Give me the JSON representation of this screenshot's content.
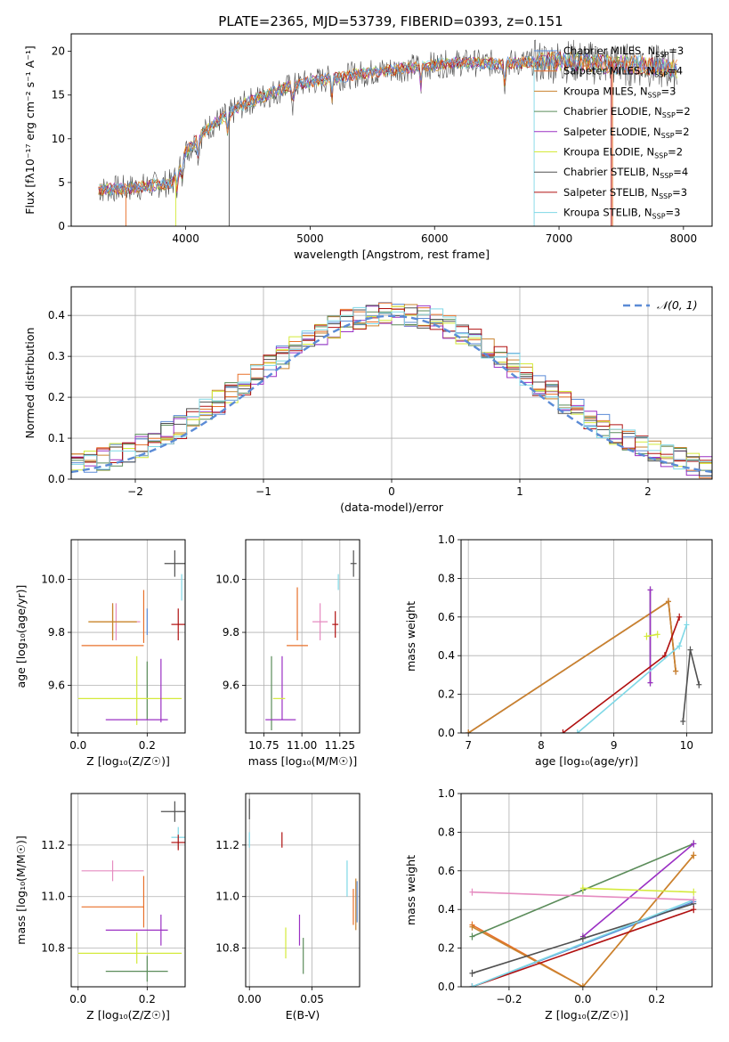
{
  "figure": {
    "title": "PLATE=2365, MJD=53739, FIBERID=0393, z=0.151"
  },
  "series": [
    {
      "name": "Chabrier MILES",
      "nssp": "3",
      "color": "#5b8bd6"
    },
    {
      "name": "Salpeter MILES",
      "nssp": "4",
      "color": "#e8702a"
    },
    {
      "name": "Kroupa MILES",
      "nssp": "3",
      "color": "#c9832e"
    },
    {
      "name": "Chabrier ELODIE",
      "nssp": "2",
      "color": "#5b8c5a"
    },
    {
      "name": "Salpeter ELODIE",
      "nssp": "2",
      "color": "#9b30c4"
    },
    {
      "name": "Kroupa ELODIE",
      "nssp": "2",
      "color": "#d4ea3a"
    },
    {
      "name": "Chabrier STELIB",
      "nssp": "4",
      "color": "#505050"
    },
    {
      "name": "Salpeter STELIB",
      "nssp": "3",
      "color": "#b01010"
    },
    {
      "name": "Kroupa STELIB",
      "nssp": "3",
      "color": "#7fd8e6"
    }
  ],
  "legend_nssp_prefix": "N",
  "legend_nssp_sub": "SSP",
  "chart_data": [
    {
      "type": "line",
      "id": "spectrum",
      "xlabel": "wavelength [Angstrom, rest frame]",
      "ylabel": "Flux [fλ10⁻¹⁷ erg cm⁻² s⁻¹ A⁻¹]",
      "xlim": [
        3080,
        8230
      ],
      "ylim": [
        0,
        22
      ],
      "xticks": [
        4000,
        5000,
        6000,
        7000,
        8000
      ],
      "yticks": [
        0,
        5,
        10,
        15,
        20
      ],
      "continuum": {
        "x": [
          3300,
          3500,
          3700,
          3900,
          4000,
          4200,
          4500,
          4800,
          5000,
          5300,
          5600,
          5900,
          6200,
          6500,
          6800,
          7100,
          7400,
          7700,
          7900
        ],
        "y": [
          4.2,
          4.3,
          4.6,
          5.0,
          8.5,
          11.5,
          14.2,
          15.8,
          16.5,
          17.2,
          17.8,
          18.3,
          18.7,
          18.6,
          18.8,
          18.9,
          18.5,
          18.4,
          18.0
        ]
      },
      "absorption_lines": [
        3934,
        3969,
        4102,
        4340,
        4861,
        5175,
        5890,
        6563
      ]
    },
    {
      "type": "line",
      "id": "residuals",
      "xlabel": "(data-model)/error",
      "ylabel": "Normed distribution",
      "xlim": [
        -2.5,
        2.5
      ],
      "ylim": [
        0,
        0.47
      ],
      "xticks": [
        -2,
        -1,
        0,
        1,
        2
      ],
      "yticks": [
        0.0,
        0.1,
        0.2,
        0.3,
        0.4
      ],
      "reference_label": "𝒩(0, 1)",
      "grid": true,
      "legend": "top-right"
    },
    {
      "type": "scatter",
      "id": "age-vs-Z",
      "xlabel": "Z [log₁₀(Z/Z☉)]",
      "ylabel": "age  [log₁₀(age/yr)]",
      "xlim": [
        -0.02,
        0.31
      ],
      "ylim": [
        9.42,
        10.15
      ],
      "xticks": [
        0.0,
        0.2
      ],
      "yticks": [
        9.6,
        9.8,
        10.0
      ],
      "grid": true,
      "points": [
        {
          "x": 0.28,
          "xerr": 0.03,
          "y": 10.06,
          "yerr": 0.05,
          "series": 6
        },
        {
          "x": 0.3,
          "xerr": 0.0,
          "y": 9.97,
          "yerr": 0.05,
          "series": 8
        },
        {
          "x": 0.29,
          "xerr": 0.02,
          "y": 9.83,
          "yerr": 0.06,
          "series": 7
        },
        {
          "x": 0.11,
          "xerr": 0.07,
          "y": 9.84,
          "yerr": 0.07,
          "series": 0
        },
        {
          "x": 0.1,
          "xerr": 0.07,
          "y": 9.84,
          "yerr": 0.07,
          "series": 8
        },
        {
          "x": 0.1,
          "xerr": 0.07,
          "y": 9.84,
          "yerr": 0.06,
          "series": 5
        },
        {
          "x": 0.1,
          "xerr": 0.07,
          "y": 9.84,
          "yerr": 0.07,
          "series": 2
        },
        {
          "x": 0.2,
          "xerr": 0.0,
          "y": 9.84,
          "yerr": 0.05,
          "series": 0
        },
        {
          "x": 0.19,
          "xerr": 0.0,
          "y": 9.86,
          "yerr": 0.1,
          "series": 1
        },
        {
          "x": 0.1,
          "xerr": 0.09,
          "y": 9.75,
          "yerr": 0.0,
          "series": 1
        },
        {
          "x": 0.2,
          "xerr": 0.0,
          "y": 9.58,
          "yerr": 0.11,
          "series": 3
        },
        {
          "x": 0.17,
          "xerr": 0.0,
          "y": 9.58,
          "yerr": 0.13,
          "series": 5
        },
        {
          "x": 0.15,
          "xerr": 0.15,
          "y": 9.55,
          "yerr": 0.0,
          "series": 5
        },
        {
          "x": 0.24,
          "xerr": 0.0,
          "y": 9.58,
          "yerr": 0.12,
          "series": 4
        },
        {
          "x": 0.17,
          "xerr": 0.09,
          "y": 9.47,
          "yerr": 0.0,
          "series": 4
        }
      ]
    },
    {
      "type": "scatter",
      "id": "age-vs-mass",
      "xlabel": "mass [log₁₀(M/M☉)]",
      "ylabel": "",
      "xlim": [
        10.63,
        11.38
      ],
      "ylim": [
        9.42,
        10.15
      ],
      "xticks": [
        10.75,
        11.0,
        11.25
      ],
      "yticks": [
        9.6,
        9.8,
        10.0
      ],
      "grid": true,
      "points": [
        {
          "x": 11.34,
          "xerr": 0.02,
          "y": 10.06,
          "yerr": 0.05,
          "series": 6
        },
        {
          "x": 11.24,
          "xerr": 0.0,
          "y": 9.99,
          "yerr": 0.03,
          "series": 8
        },
        {
          "x": 11.22,
          "xerr": 0.02,
          "y": 9.83,
          "yerr": 0.05,
          "series": 7
        },
        {
          "x": 11.12,
          "xerr": 0.05,
          "y": 9.84,
          "yerr": 0.07,
          "series": 8
        },
        {
          "x": 10.97,
          "xerr": 0.0,
          "y": 9.87,
          "yerr": 0.1,
          "series": 1
        },
        {
          "x": 10.97,
          "xerr": 0.07,
          "y": 9.75,
          "yerr": 0.0,
          "series": 1
        },
        {
          "x": 10.87,
          "xerr": 0.0,
          "y": 9.59,
          "yerr": 0.12,
          "series": 4
        },
        {
          "x": 10.85,
          "xerr": 0.04,
          "y": 9.55,
          "yerr": 0.0,
          "series": 5
        },
        {
          "x": 10.8,
          "xerr": 0.0,
          "y": 9.57,
          "yerr": 0.14,
          "series": 3
        },
        {
          "x": 10.86,
          "xerr": 0.1,
          "y": 9.47,
          "yerr": 0.0,
          "series": 4
        }
      ]
    },
    {
      "type": "line",
      "id": "mass-weight-vs-age",
      "xlabel": "age  [log₁₀(age/yr)]",
      "ylabel": "mass weight",
      "xlim": [
        6.9,
        10.35
      ],
      "ylim": [
        0,
        1.0
      ],
      "xticks": [
        7,
        8,
        9,
        10
      ],
      "yticks": [
        0.0,
        0.2,
        0.4,
        0.6,
        0.8,
        1.0
      ],
      "grid": true,
      "series": [
        {
          "s": 0,
          "x": [
            7.0,
            9.75,
            9.85
          ],
          "y": [
            0.0,
            0.68,
            0.32
          ]
        },
        {
          "s": 1,
          "x": [
            7.0,
            9.75,
            9.85
          ],
          "y": [
            0.0,
            0.68,
            0.32
          ]
        },
        {
          "s": 2,
          "x": [
            7.0,
            9.75,
            9.85
          ],
          "y": [
            0.0,
            0.68,
            0.32
          ]
        },
        {
          "s": 3,
          "x": [
            9.5,
            9.5
          ],
          "y": [
            0.26,
            0.74
          ]
        },
        {
          "s": 4,
          "x": [
            9.5,
            9.5
          ],
          "y": [
            0.26,
            0.74
          ]
        },
        {
          "s": 5,
          "x": [
            9.45,
            9.6
          ],
          "y": [
            0.5,
            0.51
          ]
        },
        {
          "s": 6,
          "x": [
            9.95,
            10.05,
            10.17
          ],
          "y": [
            0.06,
            0.43,
            0.25
          ]
        },
        {
          "s": 7,
          "x": [
            8.3,
            9.7,
            9.9
          ],
          "y": [
            0.0,
            0.4,
            0.6
          ]
        },
        {
          "s": 8,
          "x": [
            8.5,
            9.9,
            10.0
          ],
          "y": [
            0.0,
            0.45,
            0.56
          ]
        }
      ]
    },
    {
      "type": "scatter",
      "id": "mass-vs-Z",
      "xlabel": "Z [log₁₀(Z/Z☉)]",
      "ylabel": "mass [log₁₀(M/M☉)]",
      "xlim": [
        -0.02,
        0.31
      ],
      "ylim": [
        10.65,
        11.4
      ],
      "xticks": [
        0.0,
        0.2
      ],
      "yticks": [
        10.8,
        11.0,
        11.2
      ],
      "grid": true,
      "points": [
        {
          "x": 0.28,
          "xerr": 0.04,
          "y": 11.33,
          "yerr": 0.04,
          "series": 6
        },
        {
          "x": 0.29,
          "xerr": 0.02,
          "y": 11.23,
          "yerr": 0.04,
          "series": 8
        },
        {
          "x": 0.29,
          "xerr": 0.02,
          "y": 11.21,
          "yerr": 0.03,
          "series": 7
        },
        {
          "x": 0.1,
          "xerr": 0.09,
          "y": 11.1,
          "yerr": 0.04,
          "series": 8
        },
        {
          "x": 0.19,
          "xerr": 0.0,
          "y": 10.98,
          "yerr": 0.1,
          "series": 1
        },
        {
          "x": 0.1,
          "xerr": 0.09,
          "y": 10.96,
          "yerr": 0.0,
          "series": 1
        },
        {
          "x": 0.24,
          "xerr": 0.0,
          "y": 10.87,
          "yerr": 0.06,
          "series": 4
        },
        {
          "x": 0.17,
          "xerr": 0.09,
          "y": 10.87,
          "yerr": 0.0,
          "series": 4
        },
        {
          "x": 0.17,
          "xerr": 0.0,
          "y": 10.8,
          "yerr": 0.06,
          "series": 5
        },
        {
          "x": 0.15,
          "xerr": 0.15,
          "y": 10.78,
          "yerr": 0.0,
          "series": 5
        },
        {
          "x": 0.2,
          "xerr": 0.0,
          "y": 10.72,
          "yerr": 0.05,
          "series": 3
        },
        {
          "x": 0.17,
          "xerr": 0.09,
          "y": 10.71,
          "yerr": 0.0,
          "series": 3
        }
      ]
    },
    {
      "type": "scatter",
      "id": "mass-vs-ebv",
      "xlabel": "E(B-V)",
      "ylabel": "",
      "xlim": [
        -0.003,
        0.088
      ],
      "ylim": [
        10.65,
        11.4
      ],
      "xticks": [
        0.0,
        0.05
      ],
      "yticks": [
        10.8,
        11.0,
        11.2
      ],
      "grid": true,
      "points": [
        {
          "x": 0.0,
          "y": 11.34,
          "yerr": 0.04,
          "series": 6
        },
        {
          "x": 0.0,
          "y": 11.22,
          "yerr": 0.03,
          "series": 8
        },
        {
          "x": 0.026,
          "y": 11.22,
          "yerr": 0.03,
          "series": 7
        },
        {
          "x": 0.078,
          "y": 11.07,
          "yerr": 0.07,
          "series": 8
        },
        {
          "x": 0.083,
          "y": 10.96,
          "yerr": 0.07,
          "series": 1
        },
        {
          "x": 0.085,
          "y": 10.97,
          "yerr": 0.1,
          "series": 2
        },
        {
          "x": 0.086,
          "y": 10.98,
          "yerr": 0.08,
          "series": 0
        },
        {
          "x": 0.04,
          "y": 10.87,
          "yerr": 0.06,
          "series": 4
        },
        {
          "x": 0.029,
          "y": 10.82,
          "yerr": 0.06,
          "series": 5
        },
        {
          "x": 0.043,
          "y": 10.77,
          "yerr": 0.07,
          "series": 3
        }
      ]
    },
    {
      "type": "line",
      "id": "mass-weight-vs-Z",
      "xlabel": "Z [log₁₀(Z/Z☉)]",
      "ylabel": "mass weight",
      "xlim": [
        -0.33,
        0.35
      ],
      "ylim": [
        0,
        1.0
      ],
      "xticks": [
        -0.2,
        0.0,
        0.2
      ],
      "yticks": [
        0.0,
        0.2,
        0.4,
        0.6,
        0.8,
        1.0
      ],
      "grid": true,
      "series": [
        {
          "s": 0,
          "x": [
            -0.3,
            0.3
          ],
          "y": [
            0.0,
            0.44
          ]
        },
        {
          "s": 1,
          "x": [
            -0.3,
            0.0,
            0.3
          ],
          "y": [
            0.32,
            0.0,
            0.68
          ]
        },
        {
          "s": 2,
          "x": [
            -0.3,
            0.0,
            0.3
          ],
          "y": [
            0.31,
            0.0,
            0.68
          ]
        },
        {
          "s": 3,
          "x": [
            -0.3,
            0.0,
            0.3
          ],
          "y": [
            0.26,
            0.5,
            0.74
          ]
        },
        {
          "s": 4,
          "x": [
            0.0,
            0.3
          ],
          "y": [
            0.26,
            0.74
          ]
        },
        {
          "s": 5,
          "x": [
            0.0,
            0.3
          ],
          "y": [
            0.51,
            0.49
          ]
        },
        {
          "s": 6,
          "x": [
            -0.3,
            0.0,
            0.3
          ],
          "y": [
            0.07,
            0.25,
            0.43
          ]
        },
        {
          "s": 7,
          "x": [
            -0.3,
            0.3
          ],
          "y": [
            0.0,
            0.4
          ]
        },
        {
          "s": 8,
          "x": [
            -0.3,
            0.3
          ],
          "y": [
            0.0,
            0.45
          ]
        },
        {
          "s": 9,
          "x": [
            -0.3,
            0.3
          ],
          "y": [
            0.49,
            0.45
          ]
        }
      ]
    }
  ]
}
